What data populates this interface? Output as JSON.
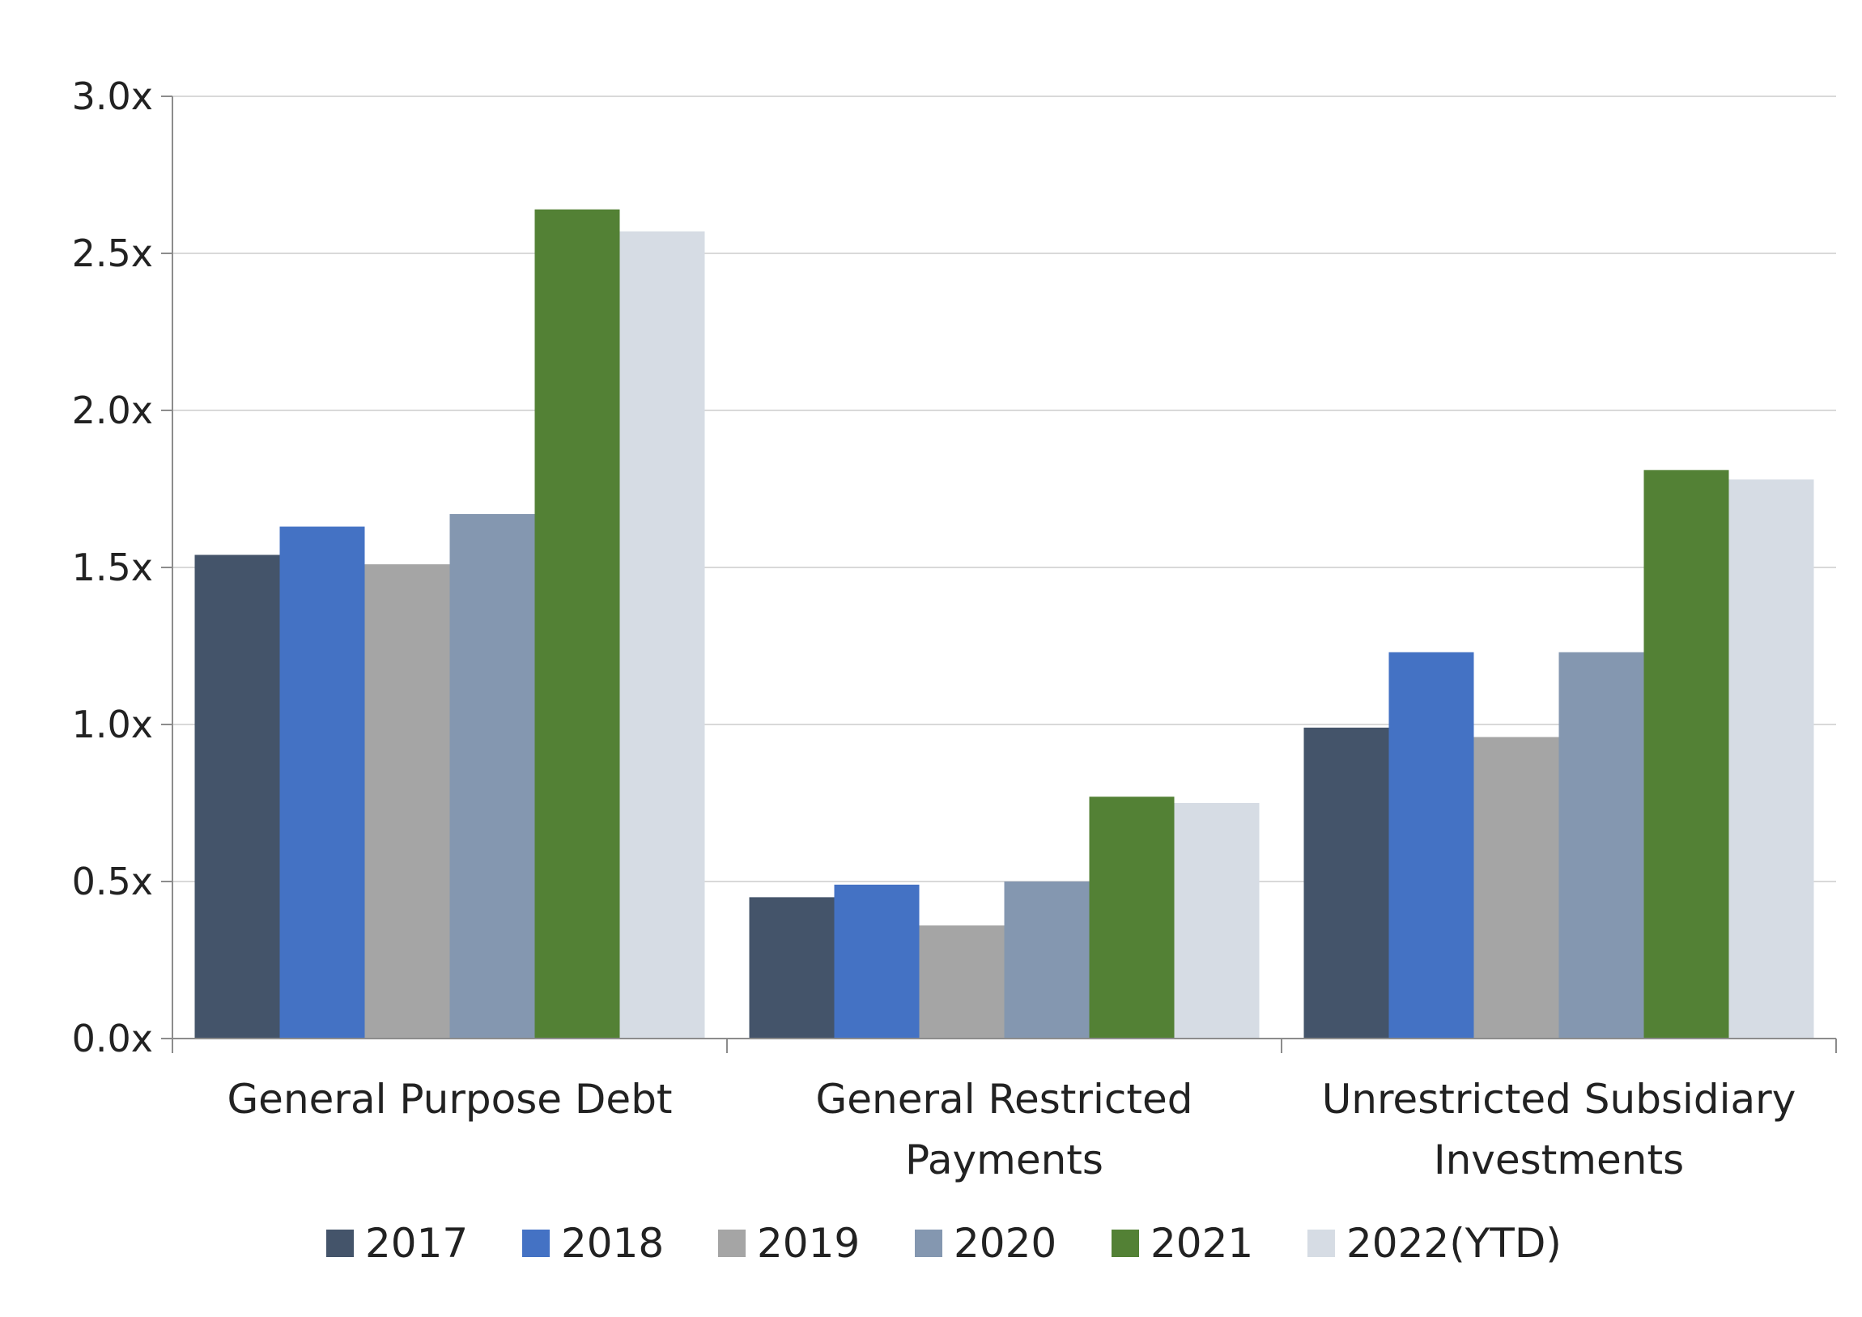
{
  "chart_data": {
    "type": "bar",
    "title": "",
    "xlabel": "",
    "ylabel": "",
    "categories": [
      [
        "General Purpose Debt"
      ],
      [
        "General Restricted",
        "Payments"
      ],
      [
        "Unrestricted Subsidiary",
        "Investments"
      ]
    ],
    "yticks": [
      {
        "value": 0.0,
        "label": "0.0x"
      },
      {
        "value": 0.5,
        "label": "0.5x"
      },
      {
        "value": 1.0,
        "label": "1.0x"
      },
      {
        "value": 1.5,
        "label": "1.5x"
      },
      {
        "value": 2.0,
        "label": "2.0x"
      },
      {
        "value": 2.5,
        "label": "2.5x"
      },
      {
        "value": 3.0,
        "label": "3.0x"
      }
    ],
    "ylim": [
      0,
      3.0
    ],
    "grid": true,
    "legend_position": "bottom",
    "series": [
      {
        "name": "2017",
        "color": "#44546A",
        "values": [
          1.54,
          0.45,
          0.99
        ]
      },
      {
        "name": "2018",
        "color": "#4472C4",
        "values": [
          1.63,
          0.49,
          1.23
        ]
      },
      {
        "name": "2019",
        "color": "#A5A5A5",
        "values": [
          1.51,
          0.36,
          0.96
        ]
      },
      {
        "name": "2020",
        "color": "#8497B0",
        "values": [
          1.67,
          0.5,
          1.23
        ]
      },
      {
        "name": "2021",
        "color": "#538135",
        "values": [
          2.64,
          0.77,
          1.81
        ]
      },
      {
        "name": "2022(YTD)",
        "color": "#D6DCE4",
        "values": [
          2.57,
          0.75,
          1.78
        ]
      }
    ]
  }
}
